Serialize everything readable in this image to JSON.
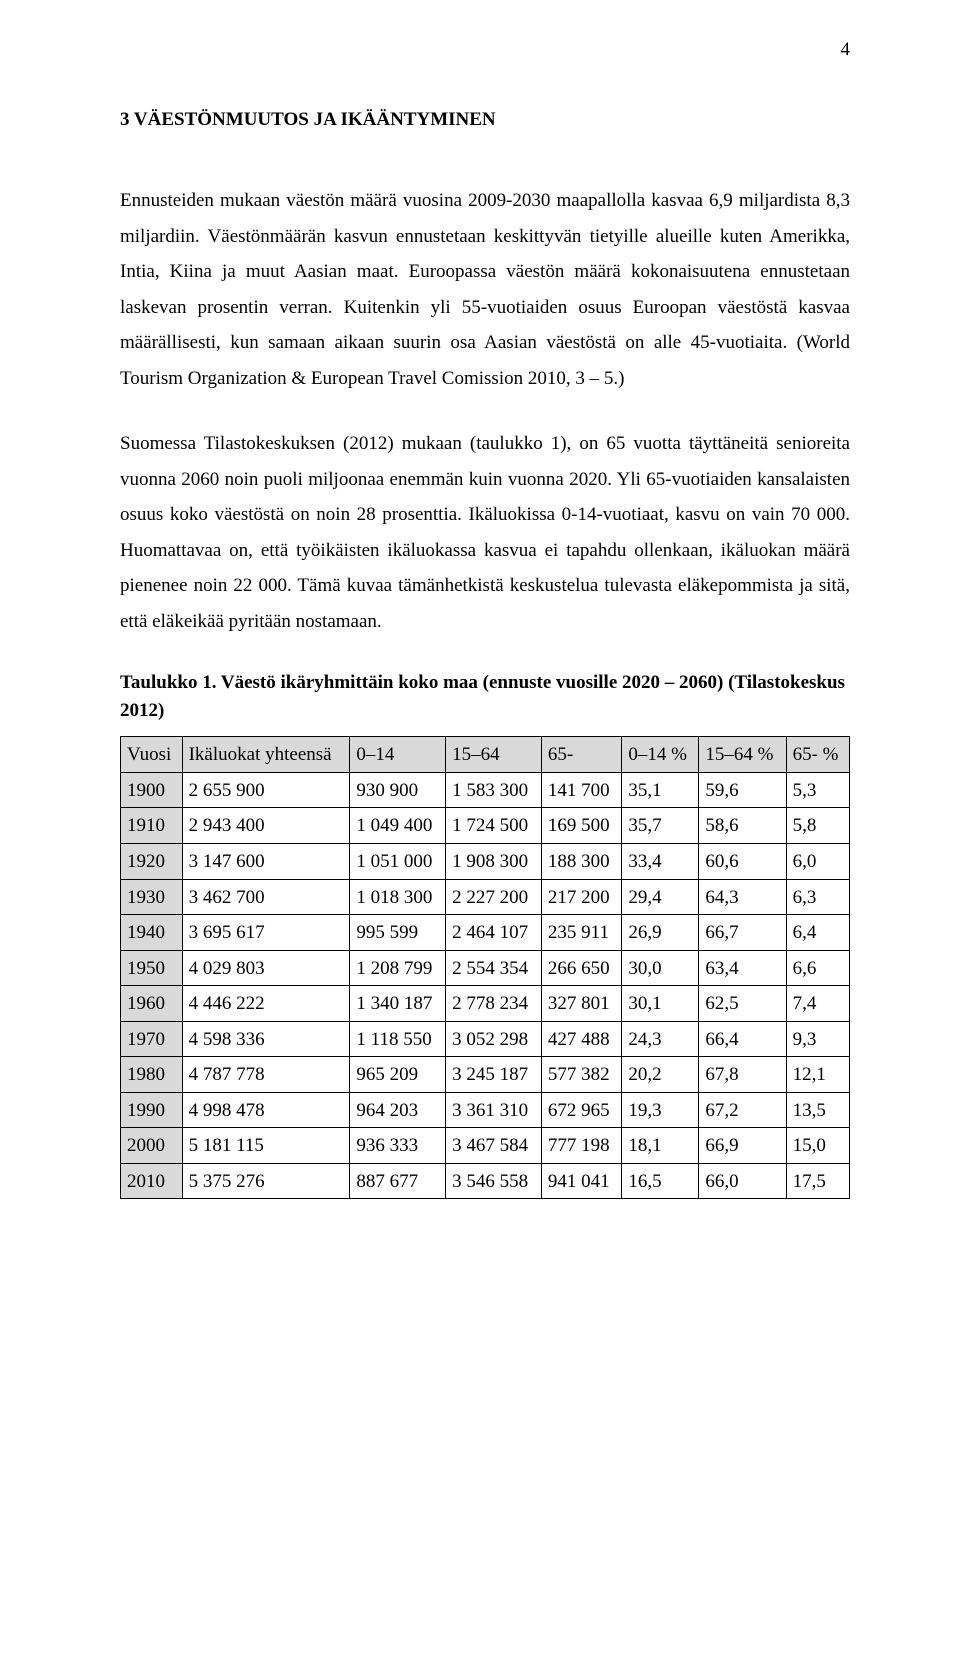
{
  "page_number": "4",
  "heading": "3 VÄESTÖNMUUTOS JA IKÄÄNTYMINEN",
  "paragraphs": {
    "p1": "Ennusteiden mukaan väestön määrä vuosina 2009-2030 maapallolla kasvaa 6,9 miljardista 8,3 miljardiin. Väestönmäärän kasvun ennustetaan keskittyvän tietyille alueille kuten Amerikka, Intia, Kiina ja muut Aasian maat. Euroopassa väestön määrä kokonaisuutena ennustetaan laskevan prosentin verran. Kuitenkin yli 55-vuotiaiden osuus Euroopan väestöstä kasvaa määrällisesti, kun samaan aikaan suurin osa Aasian väestöstä on alle 45-vuotiaita. (World Tourism Organization & European Travel Comission 2010, 3 – 5.)",
    "p2": "Suomessa Tilastokeskuksen (2012) mukaan (taulukko 1), on 65 vuotta täyttäneitä senioreita vuonna 2060 noin puoli miljoonaa enemmän kuin vuonna 2020. Yli 65-vuotiaiden kansalaisten osuus koko väestöstä on noin 28 prosenttia. Ikäluokissa 0-14-vuotiaat, kasvu on vain 70 000. Huomattavaa on, että työikäisten ikäluokassa kasvua ei tapahdu ollenkaan, ikäluokan määrä pienenee noin 22 000. Tämä kuvaa tämänhetkistä keskustelua tulevasta eläkepommista ja sitä, että eläkeikää pyritään nostamaan."
  },
  "table": {
    "title": "Taulukko 1. Väestö ikäryhmittäin koko maa (ennuste vuosille 2020 – 2060) (Tilastokeskus 2012)",
    "columns": [
      "Vuosi",
      "Ikäluokat yhteensä",
      "0–14",
      "15–64",
      "65-",
      "0–14 %",
      "15–64 %",
      "65- %"
    ],
    "rows": [
      [
        "1900",
        "2 655 900",
        "930 900",
        "1 583 300",
        "141 700",
        "35,1",
        "59,6",
        "5,3"
      ],
      [
        "1910",
        "2 943 400",
        "1 049 400",
        "1 724 500",
        "169 500",
        "35,7",
        "58,6",
        "5,8"
      ],
      [
        "1920",
        "3 147 600",
        "1 051 000",
        "1 908 300",
        "188 300",
        "33,4",
        "60,6",
        "6,0"
      ],
      [
        "1930",
        "3 462 700",
        "1 018 300",
        "2 227 200",
        "217 200",
        "29,4",
        "64,3",
        "6,3"
      ],
      [
        "1940",
        "3 695 617",
        "995 599",
        "2 464 107",
        "235 911",
        "26,9",
        "66,7",
        "6,4"
      ],
      [
        "1950",
        "4 029 803",
        "1 208 799",
        "2 554 354",
        "266 650",
        "30,0",
        "63,4",
        "6,6"
      ],
      [
        "1960",
        "4 446 222",
        "1 340 187",
        "2 778 234",
        "327 801",
        "30,1",
        "62,5",
        "7,4"
      ],
      [
        "1970",
        "4 598 336",
        "1 118 550",
        "3 052 298",
        "427 488",
        "24,3",
        "66,4",
        "9,3"
      ],
      [
        "1980",
        "4 787 778",
        "965 209",
        "3 245 187",
        "577 382",
        "20,2",
        "67,8",
        "12,1"
      ],
      [
        "1990",
        "4 998 478",
        "964 203",
        "3 361 310",
        "672 965",
        "19,3",
        "67,2",
        "13,5"
      ],
      [
        "2000",
        "5 181 115",
        "936 333",
        "3 467 584",
        "777 198",
        "18,1",
        "66,9",
        "15,0"
      ],
      [
        "2010",
        "5 375 276",
        "887 677",
        "3 546 558",
        "941 041",
        "16,5",
        "66,0",
        "17,5"
      ]
    ]
  }
}
